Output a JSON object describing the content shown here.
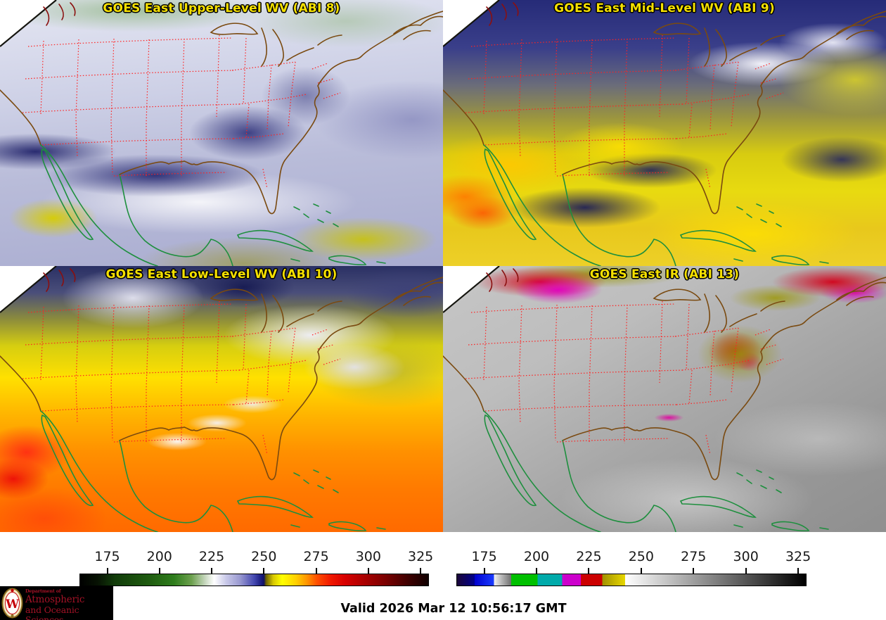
{
  "panels": [
    {
      "id": "upper_wv",
      "title": "GOES East Upper-Level WV (ABI 8)"
    },
    {
      "id": "mid_wv",
      "title": "GOES East Mid-Level WV (ABI 9)"
    },
    {
      "id": "low_wv",
      "title": "GOES East Low-Level WV (ABI 10)"
    },
    {
      "id": "ir",
      "title": "GOES East IR (ABI 13)"
    }
  ],
  "colorbars": [
    {
      "id": "wv-colorbar",
      "ticks": [
        175,
        200,
        225,
        250,
        275,
        300,
        325
      ],
      "type": "smooth",
      "stops": [
        [
          0.0,
          "#000000"
        ],
        [
          0.05,
          "#071203"
        ],
        [
          0.1,
          "#123c0a"
        ],
        [
          0.2,
          "#1f5c10"
        ],
        [
          0.27,
          "#2e7d1c"
        ],
        [
          0.32,
          "#6ca04e"
        ],
        [
          0.36,
          "#c8d8c0"
        ],
        [
          0.385,
          "#ffffff"
        ],
        [
          0.42,
          "#c8c8e8"
        ],
        [
          0.46,
          "#9898d0"
        ],
        [
          0.5,
          "#4448b0"
        ],
        [
          0.52,
          "#1a1c80"
        ],
        [
          0.528,
          "#101060"
        ],
        [
          0.534,
          "#6a6000"
        ],
        [
          0.555,
          "#d8c800"
        ],
        [
          0.58,
          "#ffff00"
        ],
        [
          0.62,
          "#ffd000"
        ],
        [
          0.65,
          "#ff9800"
        ],
        [
          0.68,
          "#ff5000"
        ],
        [
          0.72,
          "#f01800"
        ],
        [
          0.76,
          "#d80000"
        ],
        [
          0.82,
          "#a80000"
        ],
        [
          0.88,
          "#780000"
        ],
        [
          0.94,
          "#400000"
        ],
        [
          1.0,
          "#100000"
        ]
      ]
    },
    {
      "id": "ir-colorbar",
      "ticks": [
        175,
        200,
        225,
        250,
        275,
        300,
        325
      ],
      "type": "segments",
      "segments": [
        [
          0.0,
          0.05,
          "#1b0638",
          "#00008b"
        ],
        [
          0.05,
          0.106,
          "#0000cd",
          "#1a3cff"
        ],
        [
          0.106,
          0.155,
          "#f0f0f0",
          "#707070"
        ],
        [
          0.155,
          0.231,
          "#00c000",
          "#00c000"
        ],
        [
          0.231,
          0.301,
          "#00aaaa",
          "#00aaaa"
        ],
        [
          0.301,
          0.355,
          "#cc00cc",
          "#cc00cc"
        ],
        [
          0.355,
          0.416,
          "#cc0000",
          "#cc0000"
        ],
        [
          0.416,
          0.482,
          "#a09000",
          "#e8d800"
        ],
        [
          0.482,
          1.0,
          "#ffffff",
          "#000000"
        ]
      ]
    }
  ],
  "footer": {
    "valid_text": "Valid 2026 Mar 12 10:56:17 GMT"
  },
  "logo": {
    "dept": "Department of",
    "line1": "Atmospheric",
    "line2": "and Oceanic Sciences",
    "crest_letter": "W"
  },
  "colors": {
    "panel_title": "#f5e000",
    "state_borders": "#ff2222",
    "us_coast": "#7a4a10",
    "intl_coast": "#1e8f3e",
    "canada_detail": "#8b0f0f",
    "logo_bg": "#000000",
    "logo_text": "#a31226",
    "crest_red": "#c5050c",
    "crest_gold": "#c9a227"
  }
}
